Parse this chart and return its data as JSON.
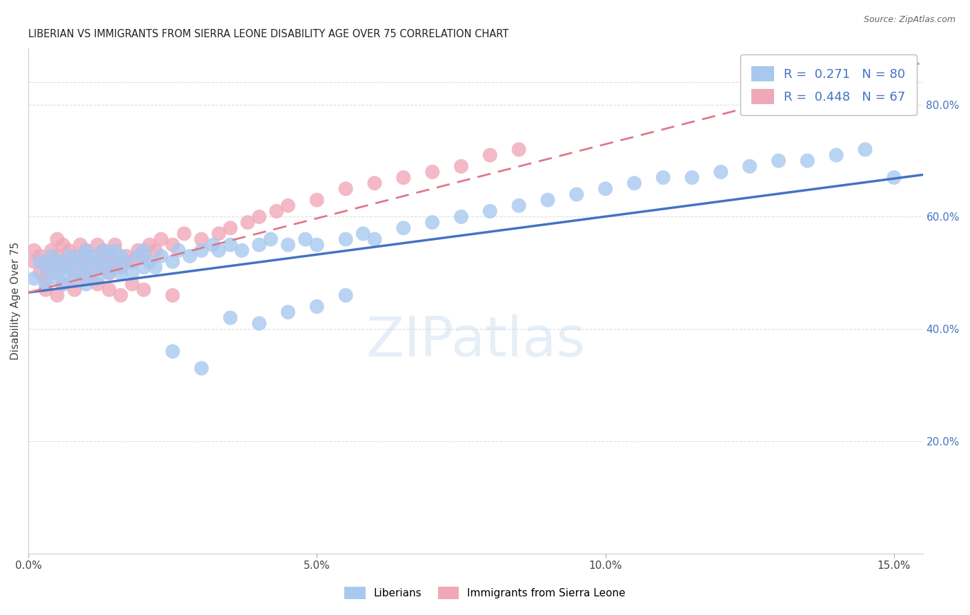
{
  "title": "LIBERIAN VS IMMIGRANTS FROM SIERRA LEONE DISABILITY AGE OVER 75 CORRELATION CHART",
  "source": "Source: ZipAtlas.com",
  "ylabel": "Disability Age Over 75",
  "xlim": [
    0.0,
    0.155
  ],
  "ylim": [
    0.0,
    0.9
  ],
  "right_yticks": [
    0.2,
    0.4,
    0.6,
    0.8
  ],
  "right_yticklabels": [
    "20.0%",
    "40.0%",
    "60.0%",
    "80.0%"
  ],
  "xticks": [
    0.0,
    0.05,
    0.1,
    0.15
  ],
  "xticklabels": [
    "0.0%",
    "5.0%",
    "10.0%",
    "15.0%"
  ],
  "legend_R1": "0.271",
  "legend_N1": "80",
  "legend_R2": "0.448",
  "legend_N2": "67",
  "color_blue": "#A8C8F0",
  "color_pink": "#F0A8B8",
  "color_blue_line": "#4472C4",
  "color_pink_line": "#E07888",
  "background_color": "#FFFFFF",
  "grid_color": "#DDDDDD",
  "blue_x": [
    0.001,
    0.002,
    0.003,
    0.003,
    0.004,
    0.004,
    0.005,
    0.005,
    0.006,
    0.006,
    0.007,
    0.007,
    0.008,
    0.008,
    0.009,
    0.009,
    0.01,
    0.01,
    0.01,
    0.011,
    0.011,
    0.012,
    0.012,
    0.013,
    0.013,
    0.014,
    0.014,
    0.015,
    0.015,
    0.016,
    0.016,
    0.017,
    0.018,
    0.019,
    0.02,
    0.02,
    0.021,
    0.022,
    0.023,
    0.025,
    0.026,
    0.028,
    0.03,
    0.032,
    0.033,
    0.035,
    0.037,
    0.04,
    0.042,
    0.045,
    0.048,
    0.05,
    0.055,
    0.058,
    0.06,
    0.065,
    0.07,
    0.075,
    0.08,
    0.085,
    0.09,
    0.095,
    0.1,
    0.105,
    0.11,
    0.115,
    0.12,
    0.125,
    0.13,
    0.135,
    0.14,
    0.145,
    0.15,
    0.025,
    0.03,
    0.035,
    0.04,
    0.045,
    0.05,
    0.055
  ],
  "blue_y": [
    0.49,
    0.52,
    0.48,
    0.51,
    0.5,
    0.53,
    0.49,
    0.52,
    0.48,
    0.51,
    0.5,
    0.53,
    0.49,
    0.52,
    0.5,
    0.53,
    0.51,
    0.48,
    0.54,
    0.5,
    0.53,
    0.49,
    0.52,
    0.51,
    0.54,
    0.5,
    0.53,
    0.51,
    0.54,
    0.5,
    0.53,
    0.52,
    0.5,
    0.53,
    0.51,
    0.54,
    0.52,
    0.51,
    0.53,
    0.52,
    0.54,
    0.53,
    0.54,
    0.55,
    0.54,
    0.55,
    0.54,
    0.55,
    0.56,
    0.55,
    0.56,
    0.55,
    0.56,
    0.57,
    0.56,
    0.58,
    0.59,
    0.6,
    0.61,
    0.62,
    0.63,
    0.64,
    0.65,
    0.66,
    0.67,
    0.67,
    0.68,
    0.69,
    0.7,
    0.7,
    0.71,
    0.72,
    0.67,
    0.36,
    0.33,
    0.42,
    0.41,
    0.43,
    0.44,
    0.46
  ],
  "pink_x": [
    0.001,
    0.001,
    0.002,
    0.002,
    0.003,
    0.003,
    0.004,
    0.004,
    0.005,
    0.005,
    0.005,
    0.006,
    0.006,
    0.007,
    0.007,
    0.008,
    0.008,
    0.009,
    0.009,
    0.01,
    0.01,
    0.011,
    0.011,
    0.012,
    0.012,
    0.013,
    0.013,
    0.014,
    0.014,
    0.015,
    0.015,
    0.016,
    0.017,
    0.018,
    0.019,
    0.02,
    0.021,
    0.022,
    0.023,
    0.025,
    0.027,
    0.03,
    0.033,
    0.035,
    0.038,
    0.04,
    0.043,
    0.045,
    0.05,
    0.055,
    0.06,
    0.065,
    0.07,
    0.075,
    0.08,
    0.085,
    0.003,
    0.005,
    0.006,
    0.008,
    0.01,
    0.012,
    0.014,
    0.016,
    0.018,
    0.02,
    0.025
  ],
  "pink_y": [
    0.52,
    0.54,
    0.5,
    0.53,
    0.49,
    0.52,
    0.51,
    0.54,
    0.5,
    0.53,
    0.56,
    0.52,
    0.55,
    0.51,
    0.54,
    0.5,
    0.53,
    0.52,
    0.55,
    0.51,
    0.54,
    0.5,
    0.53,
    0.52,
    0.55,
    0.51,
    0.54,
    0.5,
    0.53,
    0.52,
    0.55,
    0.51,
    0.53,
    0.52,
    0.54,
    0.53,
    0.55,
    0.54,
    0.56,
    0.55,
    0.57,
    0.56,
    0.57,
    0.58,
    0.59,
    0.6,
    0.61,
    0.62,
    0.63,
    0.65,
    0.66,
    0.67,
    0.68,
    0.69,
    0.71,
    0.72,
    0.47,
    0.46,
    0.48,
    0.47,
    0.49,
    0.48,
    0.47,
    0.46,
    0.48,
    0.47,
    0.46
  ],
  "blue_line": [
    0.0,
    0.155,
    0.465,
    0.675
  ],
  "pink_line": [
    0.0,
    0.155,
    0.465,
    0.875
  ]
}
